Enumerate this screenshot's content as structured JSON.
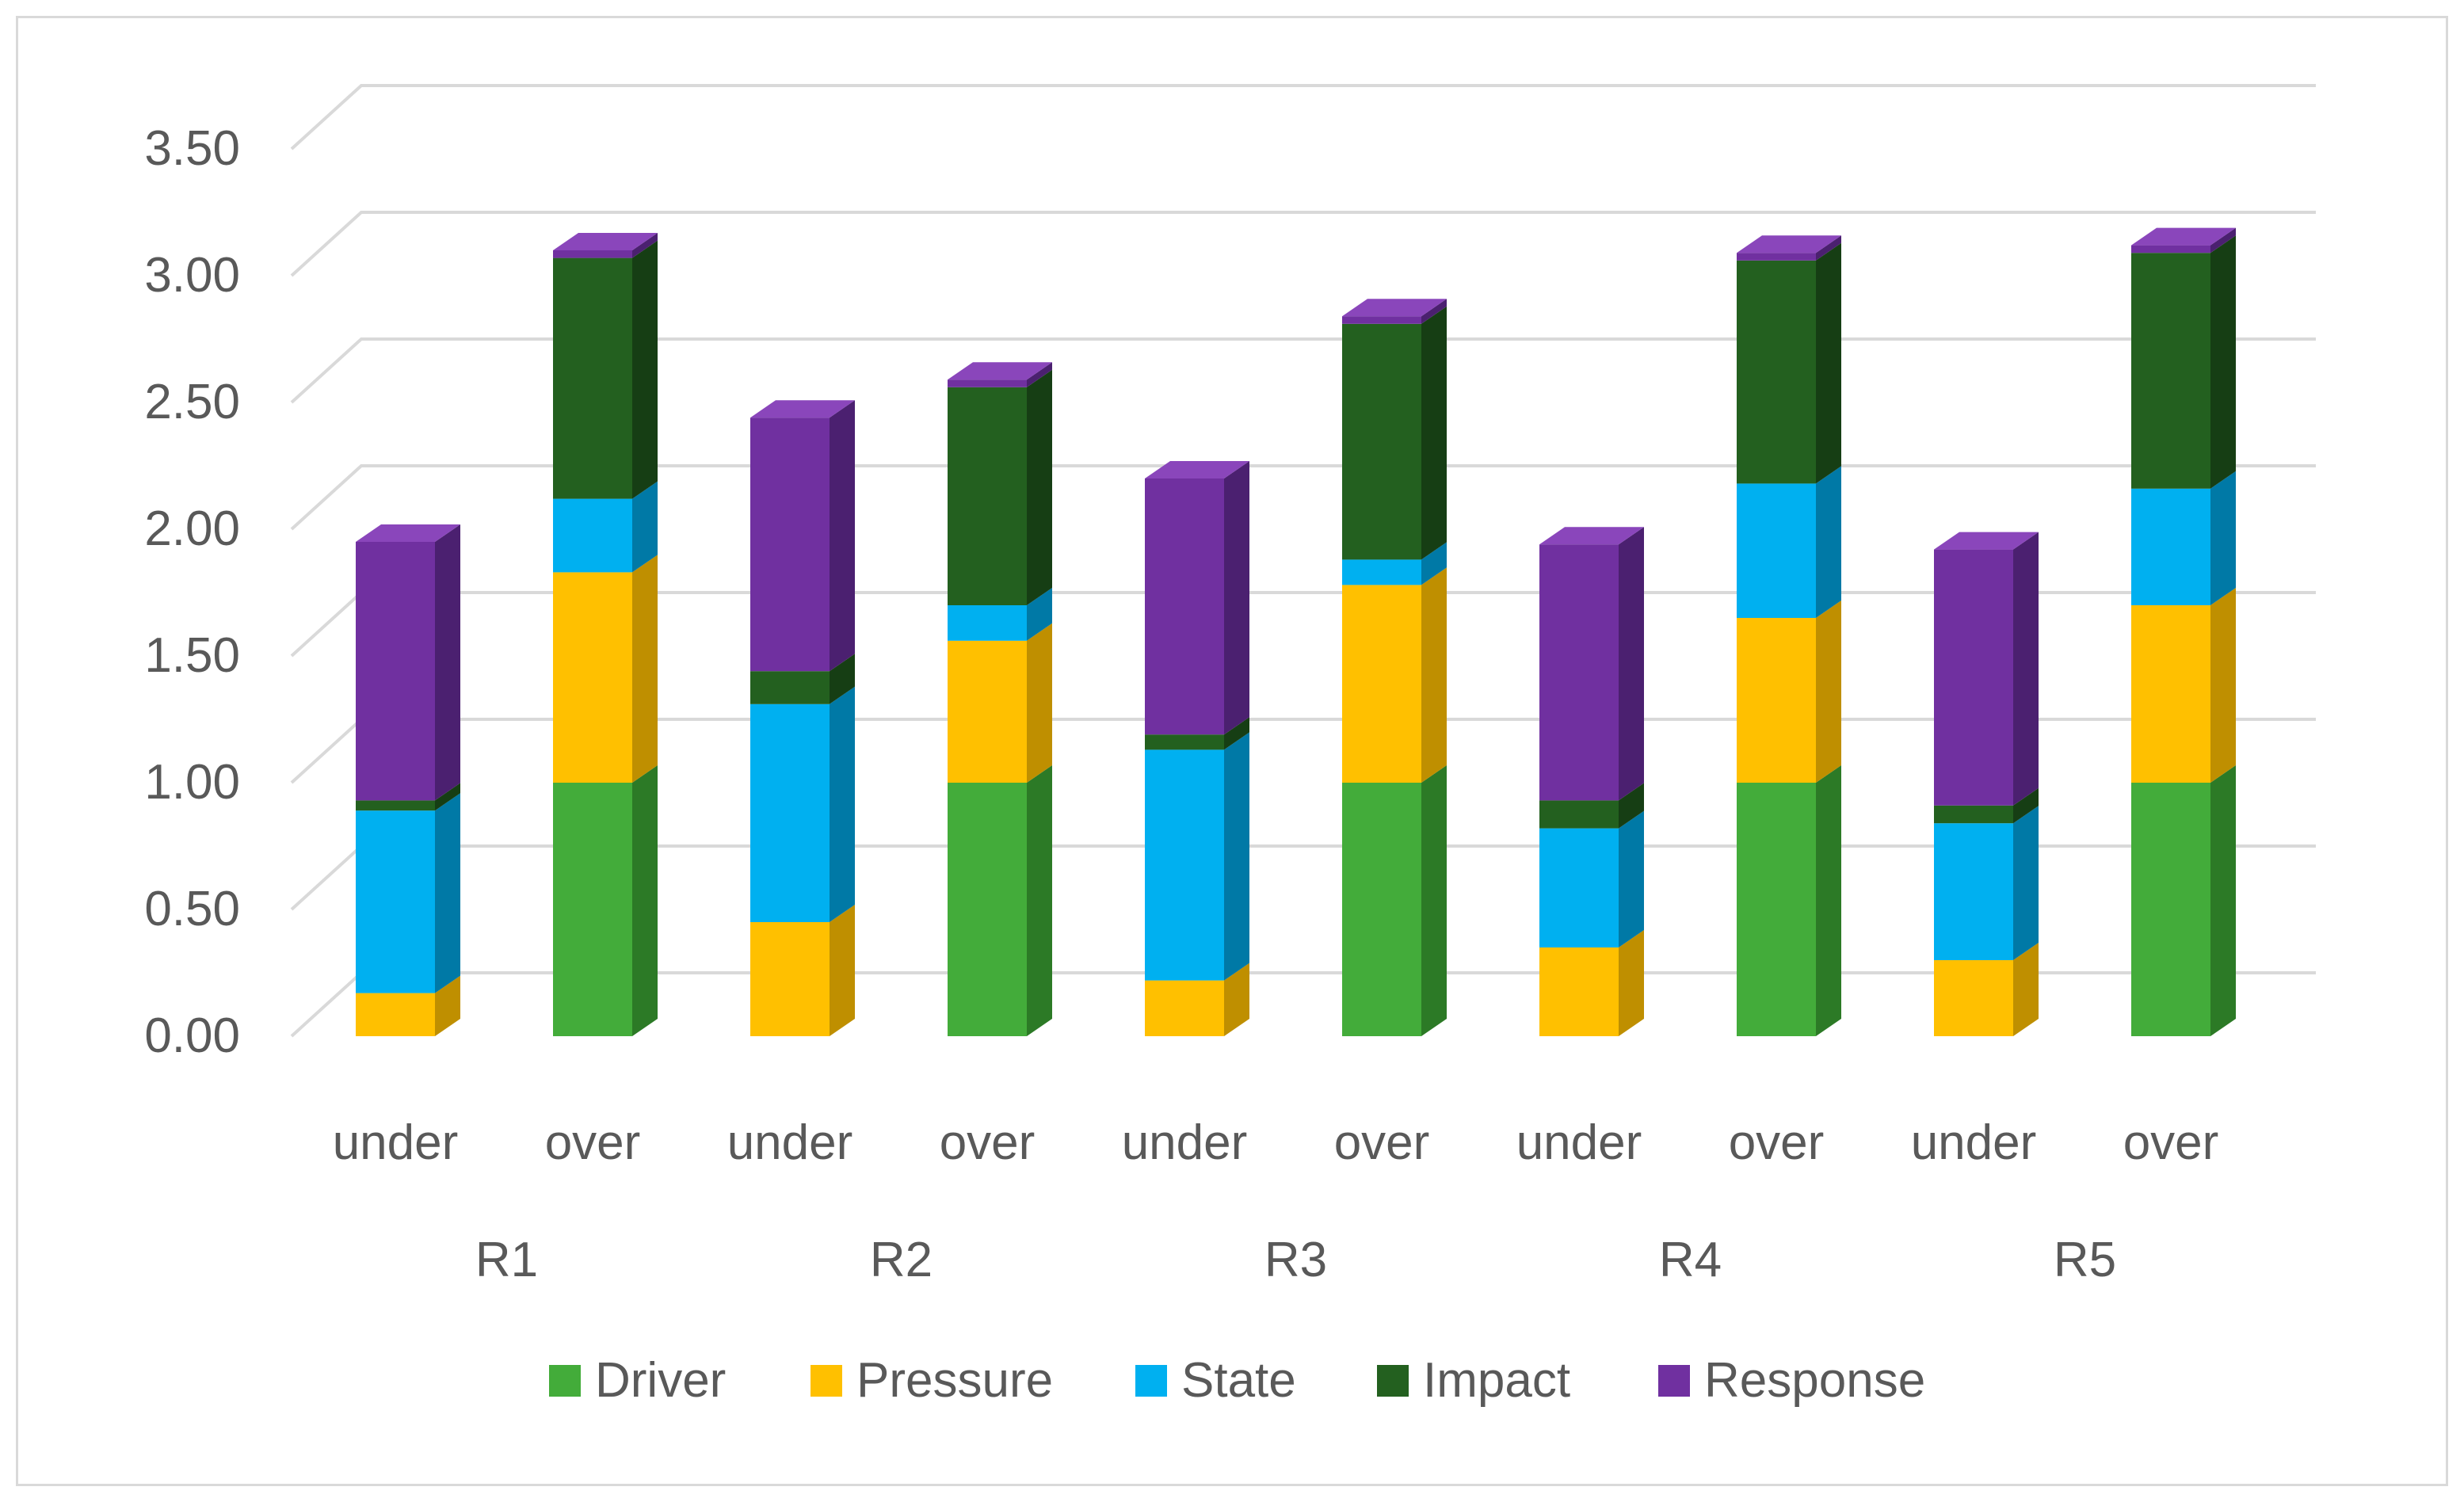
{
  "chart_data": {
    "type": "bar",
    "stacked": true,
    "style": "3d",
    "title": "",
    "xlabel": "",
    "ylabel": "",
    "ylim": [
      0,
      3.5
    ],
    "yticks": [
      0.0,
      0.5,
      1.0,
      1.5,
      2.0,
      2.5,
      3.0,
      3.5
    ],
    "ytick_labels": [
      "0.00",
      "0.50",
      "1.00",
      "1.50",
      "2.00",
      "2.50",
      "3.00",
      "3.50"
    ],
    "grid": true,
    "legend_position": "bottom",
    "groups": [
      "R1",
      "R2",
      "R3",
      "R4",
      "R5"
    ],
    "categories": [
      "under",
      "over",
      "under",
      "over",
      "under",
      "over",
      "under",
      "over",
      "under",
      "over"
    ],
    "series": [
      {
        "name": "Driver",
        "color": "#43ac3a",
        "side": "#2c7a26",
        "top": "#5ccc52",
        "values": [
          0.0,
          1.0,
          0.0,
          1.0,
          0.0,
          1.0,
          0.0,
          1.0,
          0.0,
          1.0
        ]
      },
      {
        "name": "Pressure",
        "color": "#ffc000",
        "side": "#bf8f00",
        "top": "#ffd54d",
        "values": [
          0.17,
          0.83,
          0.45,
          0.56,
          0.22,
          0.78,
          0.35,
          0.65,
          0.3,
          0.7
        ]
      },
      {
        "name": "State",
        "color": "#00b0f0",
        "side": "#0079a6",
        "top": "#4dc9f5",
        "values": [
          0.72,
          0.29,
          0.86,
          0.14,
          0.91,
          0.1,
          0.47,
          0.53,
          0.54,
          0.46
        ]
      },
      {
        "name": "Impact",
        "color": "#23601f",
        "side": "#163e14",
        "top": "#2f7d2a",
        "values": [
          0.04,
          0.95,
          0.13,
          0.86,
          0.06,
          0.93,
          0.11,
          0.88,
          0.07,
          0.93
        ]
      },
      {
        "name": "Response",
        "color": "#7030a0",
        "side": "#4b2070",
        "top": "#8a46bb",
        "values": [
          1.02,
          0.03,
          1.0,
          0.03,
          1.01,
          0.03,
          1.01,
          0.03,
          1.01,
          0.03
        ]
      }
    ]
  }
}
